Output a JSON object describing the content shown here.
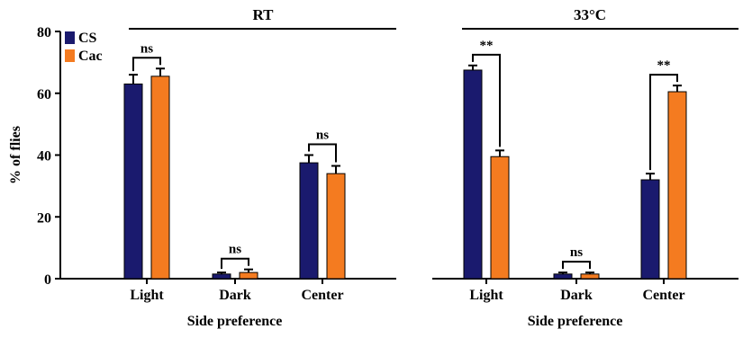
{
  "chart_data": {
    "type": "bar",
    "ylabel": "% of flies",
    "ylim": [
      0,
      80
    ],
    "yticks": [
      0,
      20,
      40,
      60,
      80
    ],
    "legend": {
      "placement": "top-left",
      "entries": [
        {
          "name": "CS",
          "color": "#1a1a6e"
        },
        {
          "name": "Cac",
          "color": "#f47b20"
        }
      ]
    },
    "panels": [
      {
        "title": "RT",
        "xlabel": "Side preference",
        "categories": [
          "Light",
          "Dark",
          "Center"
        ],
        "series": [
          {
            "name": "CS",
            "values": [
              63,
              1.5,
              37.5
            ],
            "errors": [
              3,
              0.5,
              2.5
            ]
          },
          {
            "name": "Cac",
            "values": [
              65.5,
              2,
              34
            ],
            "errors": [
              2.5,
              1,
              2.5
            ]
          }
        ],
        "significance": [
          "ns",
          "ns",
          "ns"
        ]
      },
      {
        "title": "33°C",
        "xlabel": "Side preference",
        "categories": [
          "Light",
          "Dark",
          "Center"
        ],
        "series": [
          {
            "name": "CS",
            "values": [
              67.5,
              1.5,
              32
            ],
            "errors": [
              1.5,
              0.5,
              2
            ]
          },
          {
            "name": "Cac",
            "values": [
              39.5,
              1.5,
              60.5
            ],
            "errors": [
              2,
              0.5,
              2
            ]
          }
        ],
        "significance": [
          "**",
          "ns",
          "**"
        ]
      }
    ]
  }
}
